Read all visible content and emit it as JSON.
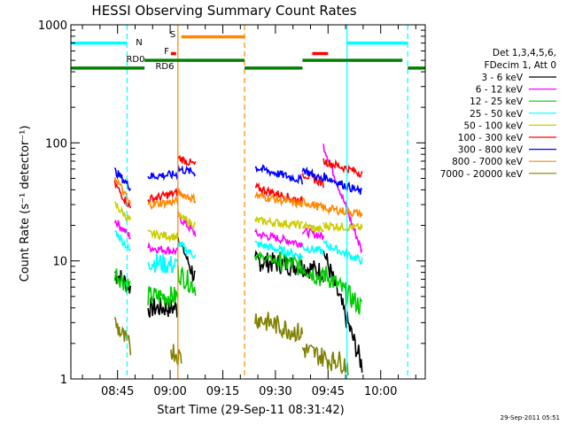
{
  "chart_data": {
    "type": "line",
    "title": "HESSI Observing Summary Count Rates",
    "xlabel": "Start Time (29-Sep-11 08:31:42)",
    "ylabel": "Count Rate (s⁻¹ detector⁻¹)",
    "yscale": "log",
    "ylim": [
      1,
      1000
    ],
    "xlim_minutes": [
      0,
      101
    ],
    "x_ticks": [
      {
        "t": 13.3,
        "label": "08:45"
      },
      {
        "t": 28.3,
        "label": "09:00"
      },
      {
        "t": 43.3,
        "label": "09:15"
      },
      {
        "t": 58.3,
        "label": "09:30"
      },
      {
        "t": 73.3,
        "label": "09:45"
      },
      {
        "t": 88.3,
        "label": "10:00"
      }
    ],
    "y_tick_labels": [
      "1",
      "10",
      "100",
      "1000"
    ],
    "legend_header": [
      "Det 1,3,4,5,6,",
      "FDecim 1, Att 0"
    ],
    "series": [
      {
        "name": "3 - 6 keV",
        "color": "#000000",
        "segments": [
          {
            "t": [
              12.5,
              17.0
            ],
            "v": [
              8,
              6
            ]
          },
          {
            "t": [
              22.0,
              30.5
            ],
            "v": [
              4,
              4
            ]
          },
          {
            "t": [
              30.5,
              35.5
            ],
            "v": [
              16,
              7
            ]
          },
          {
            "t": [
              52.5,
              66.0
            ],
            "v": [
              10,
              9
            ]
          },
          {
            "t": [
              66.0,
              72.0
            ],
            "v": [
              9,
              8
            ]
          },
          {
            "t": [
              72.0,
              83.0
            ],
            "v": [
              12,
              1.3
            ]
          }
        ]
      },
      {
        "name": "6 - 12 keV",
        "color": "#ff00ff",
        "segments": [
          {
            "t": [
              12.5,
              17.0
            ],
            "v": [
              22,
              16
            ]
          },
          {
            "t": [
              22.0,
              30.5
            ],
            "v": [
              13,
              12
            ]
          },
          {
            "t": [
              30.5,
              35.5
            ],
            "v": [
              24,
              17
            ]
          },
          {
            "t": [
              52.5,
              66.0
            ],
            "v": [
              17,
              14
            ]
          },
          {
            "t": [
              66.0,
              72.0
            ],
            "v": [
              18,
              16
            ]
          },
          {
            "t": [
              72.0,
              83.0
            ],
            "v": [
              95,
              12
            ]
          }
        ]
      },
      {
        "name": "12 - 25 keV",
        "color": "#00cc00",
        "segments": [
          {
            "t": [
              12.5,
              17.0
            ],
            "v": [
              8,
              6
            ]
          },
          {
            "t": [
              22.0,
              30.5
            ],
            "v": [
              5,
              5
            ]
          },
          {
            "t": [
              30.5,
              35.5
            ],
            "v": [
              8,
              6
            ]
          },
          {
            "t": [
              52.5,
              66.0
            ],
            "v": [
              11,
              9
            ]
          },
          {
            "t": [
              66.0,
              72.0
            ],
            "v": [
              9,
              7
            ]
          },
          {
            "t": [
              72.0,
              83.0
            ],
            "v": [
              8,
              4
            ]
          }
        ]
      },
      {
        "name": "25 - 50 keV",
        "color": "#00ffff",
        "segments": [
          {
            "t": [
              12.5,
              17.0
            ],
            "v": [
              18,
              12
            ]
          },
          {
            "t": [
              22.0,
              30.5
            ],
            "v": [
              10,
              9
            ]
          },
          {
            "t": [
              30.5,
              35.5
            ],
            "v": [
              14,
              11
            ]
          },
          {
            "t": [
              52.5,
              66.0
            ],
            "v": [
              14,
              11
            ]
          },
          {
            "t": [
              66.0,
              72.0
            ],
            "v": [
              13,
              12
            ]
          },
          {
            "t": [
              72.0,
              83.0
            ],
            "v": [
              14,
              10
            ]
          }
        ]
      },
      {
        "name": "50 - 100 keV",
        "color": "#cccc00",
        "segments": [
          {
            "t": [
              12.5,
              17.0
            ],
            "v": [
              30,
              22
            ]
          },
          {
            "t": [
              22.0,
              30.5
            ],
            "v": [
              17,
              16
            ]
          },
          {
            "t": [
              30.5,
              35.5
            ],
            "v": [
              24,
              20
            ]
          },
          {
            "t": [
              52.5,
              66.0
            ],
            "v": [
              22,
              20
            ]
          },
          {
            "t": [
              66.0,
              72.0
            ],
            "v": [
              20,
              18
            ]
          },
          {
            "t": [
              72.0,
              83.0
            ],
            "v": [
              20,
              19
            ]
          }
        ]
      },
      {
        "name": "100 - 300 keV",
        "color": "#ff0000",
        "segments": [
          {
            "t": [
              12.5,
              17.0
            ],
            "v": [
              45,
              28
            ]
          },
          {
            "t": [
              22.0,
              30.5
            ],
            "v": [
              33,
              38
            ]
          },
          {
            "t": [
              30.5,
              35.5
            ],
            "v": [
              75,
              65
            ]
          },
          {
            "t": [
              52.5,
              66.0
            ],
            "v": [
              42,
              32
            ]
          },
          {
            "t": [
              66.0,
              72.0
            ],
            "v": [
              55,
              45
            ]
          },
          {
            "t": [
              72.0,
              83.0
            ],
            "v": [
              70,
              55
            ]
          }
        ]
      },
      {
        "name": "300 - 800 keV",
        "color": "#0000ff",
        "segments": [
          {
            "t": [
              12.5,
              17.0
            ],
            "v": [
              58,
              42
            ]
          },
          {
            "t": [
              22.0,
              30.5
            ],
            "v": [
              52,
              54
            ]
          },
          {
            "t": [
              30.5,
              35.5
            ],
            "v": [
              60,
              56
            ]
          },
          {
            "t": [
              52.5,
              66.0
            ],
            "v": [
              62,
              48
            ]
          },
          {
            "t": [
              66.0,
              72.0
            ],
            "v": [
              60,
              48
            ]
          },
          {
            "t": [
              72.0,
              83.0
            ],
            "v": [
              52,
              38
            ]
          }
        ]
      },
      {
        "name": "800 - 7000 keV",
        "color": "#ff8800",
        "segments": [
          {
            "t": [
              12.5,
              17.0
            ],
            "v": [
              52,
              30
            ]
          },
          {
            "t": [
              22.0,
              30.5
            ],
            "v": [
              30,
              32
            ]
          },
          {
            "t": [
              30.5,
              35.5
            ],
            "v": [
              38,
              33
            ]
          },
          {
            "t": [
              52.5,
              66.0
            ],
            "v": [
              36,
              30
            ]
          },
          {
            "t": [
              66.0,
              72.0
            ],
            "v": [
              32,
              28
            ]
          },
          {
            "t": [
              72.0,
              83.0
            ],
            "v": [
              28,
              25
            ]
          }
        ]
      },
      {
        "name": "7000 - 20000 keV",
        "color": "#808000",
        "segments": [
          {
            "t": [
              12.5,
              17.0
            ],
            "v": [
              3,
              1.8
            ]
          },
          {
            "t": [
              28.5,
              31.5
            ],
            "v": [
              1.8,
              1.5
            ]
          },
          {
            "t": [
              52.5,
              66.0
            ],
            "v": [
              3.3,
              2.4
            ]
          },
          {
            "t": [
              66.0,
              75.0
            ],
            "v": [
              1.8,
              1.4
            ]
          },
          {
            "t": [
              75.0,
              79.0
            ],
            "v": [
              1.5,
              1.3
            ]
          }
        ]
      }
    ],
    "flag_bars": [
      {
        "label": "N",
        "color": "#00ffff",
        "level": 700,
        "segments": [
          [
            0,
            16.0
          ],
          [
            78.7,
            96.0
          ]
        ]
      },
      {
        "label": "S",
        "color": "#ff8800",
        "level": 790,
        "segments": [
          [
            31.5,
            49.5
          ]
        ]
      },
      {
        "label": "F",
        "color": "#ff0000",
        "level": 570,
        "segments": [
          [
            28.5,
            30.0
          ],
          [
            68.8,
            73.3
          ]
        ]
      },
      {
        "label": "RD0",
        "color": "#008000",
        "level": 500,
        "segments": [
          [
            21.0,
            49.5
          ],
          [
            66.0,
            94.5
          ]
        ]
      },
      {
        "label": "RD6",
        "color": "#008000",
        "level": 430,
        "segments": [
          [
            0,
            21.0
          ],
          [
            49.5,
            66.0
          ],
          [
            96.0,
            101.0
          ]
        ]
      }
    ],
    "markers": [
      {
        "t": 0.0,
        "color": "#00ffff",
        "style": "solid"
      },
      {
        "t": 16.0,
        "color": "#00ffff",
        "style": "dashed"
      },
      {
        "t": 30.5,
        "color": "#ff8800",
        "style": "solid"
      },
      {
        "t": 49.5,
        "color": "#ff8800",
        "style": "dashed"
      },
      {
        "t": 78.7,
        "color": "#00ffff",
        "style": "solid"
      },
      {
        "t": 96.0,
        "color": "#00ffff",
        "style": "dashed"
      }
    ]
  },
  "timestamp": "29-Sep-2011 05:51"
}
